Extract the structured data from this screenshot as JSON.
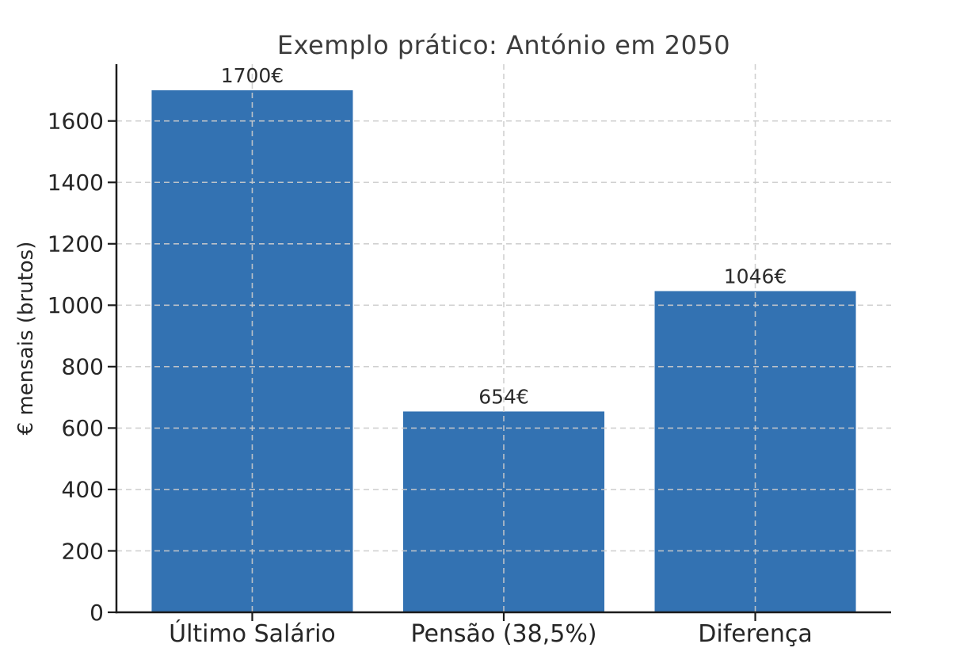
{
  "chart_data": {
    "type": "bar",
    "title": "Exemplo prático: António em 2050",
    "ylabel": "€ mensais (brutos)",
    "xlabel": "",
    "categories": [
      "Último Salário",
      "Pensão (38,5%)",
      "Diferença"
    ],
    "values": [
      1700,
      654,
      1046
    ],
    "bar_labels": [
      "1700€",
      "654€",
      "1046€"
    ],
    "yticks": [
      0,
      200,
      400,
      600,
      800,
      1000,
      1200,
      1400,
      1600
    ],
    "ylim": [
      0,
      1785
    ],
    "xlim": [
      -0.54,
      2.54
    ],
    "bar_width": 0.8,
    "grid": "dashed gridlines on both axes, drawn above the bars",
    "legend": "none",
    "colors": {
      "bar": "#3372b2",
      "grid": "#cccccc",
      "spine": "#1c1c1c",
      "tick_label": "#262626",
      "title": "#3c3c3c",
      "bar_label": "#2b2b2b",
      "background": "#ffffff"
    }
  }
}
